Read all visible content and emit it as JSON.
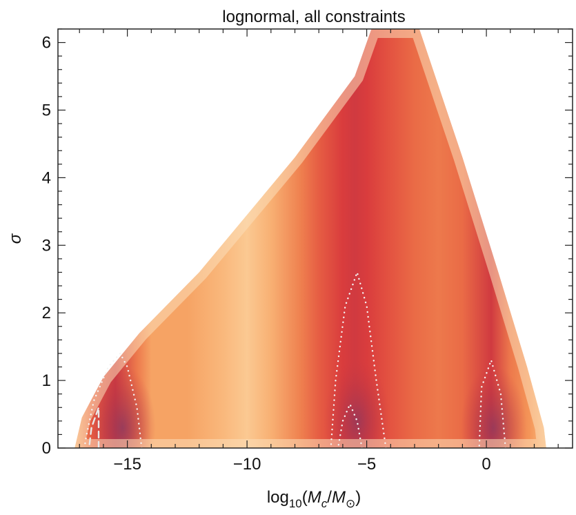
{
  "chart_data": {
    "type": "heatmap",
    "title": "lognormal, all constraints",
    "xlabel": {
      "prefix": "log",
      "sub": "10",
      "open": "(",
      "num": "M",
      "num_sub": "c",
      "slash": "/",
      "den": "M",
      "den_sub": "⊙",
      "close": ")"
    },
    "ylabel": "σ",
    "xlim": [
      -17.9,
      3.6
    ],
    "ylim": [
      0,
      6.2
    ],
    "x_ticks": [
      -15,
      -10,
      -5,
      0
    ],
    "x_tick_labels": [
      "−15",
      "−10",
      "−5",
      "0"
    ],
    "y_ticks": [
      0,
      1,
      2,
      3,
      4,
      5,
      6
    ],
    "y_tick_labels": [
      "0",
      "1",
      "2",
      "3",
      "4",
      "5",
      "6"
    ],
    "x_minor_step": 1,
    "y_minor_step": 0.2,
    "region_boundary": {
      "left": [
        [
          -17.2,
          0
        ],
        [
          -16.9,
          0.45
        ],
        [
          -16.0,
          1.05
        ],
        [
          -14.5,
          1.7
        ],
        [
          -12.0,
          2.6
        ],
        [
          -8.0,
          4.3
        ],
        [
          -5.5,
          5.5
        ],
        [
          -4.8,
          6.2
        ]
      ],
      "right": [
        [
          -2.8,
          6.2
        ],
        [
          -1.0,
          4.3
        ],
        [
          0.5,
          2.6
        ],
        [
          1.7,
          1.2
        ],
        [
          2.4,
          0.3
        ],
        [
          2.5,
          0
        ]
      ]
    },
    "colormap": [
      "#fde8cc",
      "#fbc68c",
      "#f59a5a",
      "#ea6b46",
      "#dc3d3c",
      "#b73447",
      "#7a3a6a"
    ],
    "intensity_profile": {
      "x": [
        -17.2,
        -16.5,
        -15.5,
        -14.6,
        -14.0,
        -12.5,
        -11.0,
        -10.0,
        -9.0,
        -7.8,
        -7.0,
        -6.0,
        -5.5,
        -5.0,
        -4.2,
        -3.0,
        -2.0,
        -1.0,
        0.2,
        1.0,
        1.8,
        2.5
      ],
      "level": [
        0.25,
        0.55,
        0.75,
        0.45,
        0.3,
        0.3,
        0.22,
        0.15,
        0.25,
        0.42,
        0.55,
        0.68,
        0.72,
        0.68,
        0.6,
        0.5,
        0.45,
        0.5,
        0.72,
        0.45,
        0.35,
        0.2
      ]
    },
    "hotspots": [
      {
        "x": -15.2,
        "y": 0.3,
        "level": 0.95
      },
      {
        "x": -5.4,
        "y": 0.4,
        "level": 0.85
      },
      {
        "x": 0.3,
        "y": 0.3,
        "level": 0.92
      }
    ],
    "contours": [
      {
        "style": "dotted",
        "color": "#f4f4f4",
        "points": [
          [
            -14.4,
            0
          ],
          [
            -14.6,
            0.6
          ],
          [
            -15.0,
            1.2
          ],
          [
            -15.3,
            1.4
          ],
          [
            -15.8,
            1.2
          ],
          [
            -16.4,
            0.7
          ],
          [
            -16.7,
            0.2
          ],
          [
            -16.8,
            0
          ]
        ]
      },
      {
        "style": "dotted",
        "color": "#f4f4f4",
        "points": [
          [
            -4.2,
            0
          ],
          [
            -4.6,
            1.0
          ],
          [
            -5.0,
            2.1
          ],
          [
            -5.4,
            2.6
          ],
          [
            -5.9,
            2.1
          ],
          [
            -6.3,
            1.0
          ],
          [
            -6.5,
            0
          ]
        ]
      },
      {
        "style": "dotted",
        "color": "#f4f4f4",
        "points": [
          [
            -5.2,
            0
          ],
          [
            -5.4,
            0.4
          ],
          [
            -5.7,
            0.65
          ],
          [
            -6.0,
            0.4
          ],
          [
            -6.2,
            0
          ]
        ]
      },
      {
        "style": "dotted",
        "color": "#f4f4f4",
        "points": [
          [
            0.8,
            0
          ],
          [
            0.6,
            0.8
          ],
          [
            0.2,
            1.3
          ],
          [
            -0.2,
            0.9
          ],
          [
            -0.3,
            0
          ]
        ]
      },
      {
        "style": "dashed",
        "color": "#e8e8e8",
        "points": [
          [
            -16.2,
            0
          ],
          [
            -16.2,
            0.6
          ],
          [
            -16.5,
            0.3
          ],
          [
            -16.6,
            0
          ]
        ]
      }
    ]
  }
}
